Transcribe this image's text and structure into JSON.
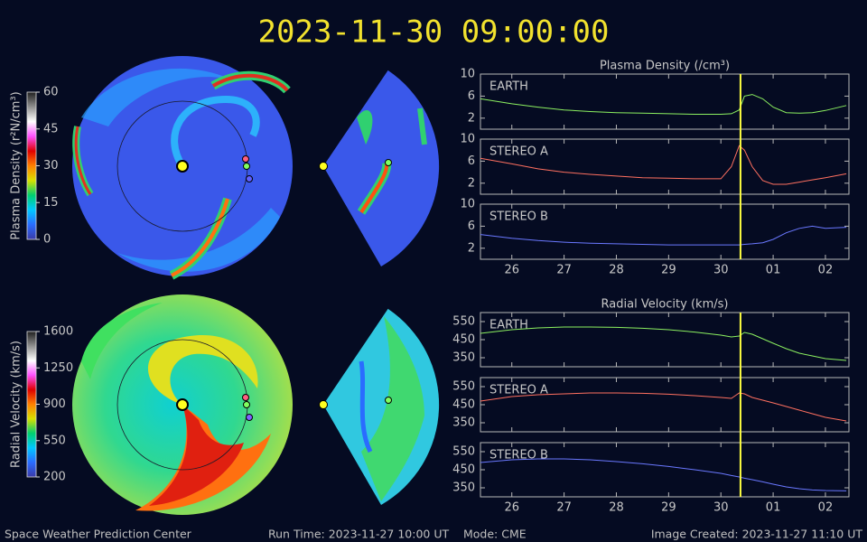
{
  "title": "2023-11-30 09:00:00",
  "footer": {
    "left": "Space Weather Prediction Center",
    "run": "Run Time: 2023-11-27 10:00 UT",
    "mode": "Mode: CME",
    "created": "Image Created: 2023-11-27 11:10 UT"
  },
  "chart_data": [
    {
      "type": "colorbar",
      "label": "Plasma Density (r²N/cm³)",
      "ylim": [
        0,
        60
      ],
      "yticks": [
        0,
        15,
        30,
        45,
        60
      ],
      "colormap": [
        "#3a3aa8",
        "#2a6cff",
        "#00c8ff",
        "#00d070",
        "#d8e000",
        "#ff8000",
        "#e00000",
        "#ff50ff",
        "#ffffff",
        "#909090",
        "#202020"
      ]
    },
    {
      "type": "colorbar",
      "label": "Radial Velocity (km/s)",
      "ylim": [
        200,
        1600
      ],
      "yticks": [
        200,
        550,
        900,
        1250,
        1600
      ],
      "colormap": [
        "#3a3aa8",
        "#2a6cff",
        "#00c8ff",
        "#00d070",
        "#d8e000",
        "#ff8000",
        "#e00000",
        "#ff50ff",
        "#ffffff",
        "#909090",
        "#202020"
      ]
    },
    {
      "type": "line",
      "title": "Plasma Density (/cm³)",
      "x": [
        25.4,
        26,
        26.5,
        27,
        27.5,
        28,
        28.5,
        29,
        29.5,
        30,
        30.2,
        30.35,
        30.45,
        30.6,
        30.8,
        31,
        31.25,
        31.5,
        31.75,
        32,
        32.4
      ],
      "xlim": [
        25.4,
        32.45
      ],
      "xticks": [
        26,
        27,
        28,
        29,
        30,
        {
          "value": 31,
          "label": "01"
        },
        {
          "value": 32,
          "label": "02"
        }
      ],
      "ylim": [
        0,
        10
      ],
      "yticks": [
        2,
        6,
        10
      ],
      "time_marker": 30.375,
      "series": [
        {
          "name": "EARTH",
          "color": "#8cf060",
          "values": [
            5.5,
            4.6,
            4.0,
            3.5,
            3.2,
            3.0,
            2.9,
            2.8,
            2.7,
            2.7,
            2.8,
            3.5,
            6.0,
            6.3,
            5.5,
            4.0,
            3.0,
            2.9,
            3.0,
            3.4,
            4.3
          ]
        },
        {
          "name": "STEREO A",
          "color": "#ff7060",
          "values": [
            6.5,
            5.5,
            4.6,
            4.0,
            3.6,
            3.3,
            3.0,
            2.9,
            2.8,
            2.8,
            5.0,
            8.8,
            8.0,
            5.0,
            2.5,
            1.8,
            1.8,
            2.2,
            2.6,
            3.0,
            3.7
          ]
        },
        {
          "name": "STEREO B",
          "color": "#6a78ff",
          "values": [
            4.5,
            3.8,
            3.4,
            3.1,
            2.9,
            2.8,
            2.7,
            2.6,
            2.6,
            2.6,
            2.6,
            2.6,
            2.7,
            2.8,
            3.0,
            3.6,
            4.8,
            5.6,
            6.0,
            5.6,
            5.8
          ]
        }
      ]
    },
    {
      "type": "line",
      "title": "Radial Velocity (km/s)",
      "x": [
        25.4,
        26,
        26.5,
        27,
        27.5,
        28,
        28.5,
        29,
        29.5,
        30,
        30.2,
        30.35,
        30.45,
        30.6,
        30.8,
        31,
        31.25,
        31.5,
        31.75,
        32,
        32.4
      ],
      "xlim": [
        25.4,
        32.45
      ],
      "xticks": [
        26,
        27,
        28,
        29,
        30,
        {
          "value": 31,
          "label": "01"
        },
        {
          "value": 32,
          "label": "02"
        }
      ],
      "ylim": [
        300,
        600
      ],
      "yticks": [
        350,
        450,
        550
      ],
      "time_marker": 30.375,
      "series": [
        {
          "name": "EARTH",
          "color": "#8cf060",
          "values": [
            485,
            505,
            515,
            520,
            520,
            518,
            513,
            505,
            492,
            475,
            465,
            470,
            490,
            480,
            455,
            430,
            400,
            375,
            360,
            345,
            335
          ]
        },
        {
          "name": "STEREO A",
          "color": "#ff7060",
          "values": [
            470,
            495,
            505,
            510,
            515,
            515,
            513,
            508,
            500,
            490,
            485,
            515,
            510,
            490,
            475,
            460,
            440,
            420,
            400,
            380,
            360
          ]
        },
        {
          "name": "STEREO B",
          "color": "#6a78ff",
          "values": [
            490,
            505,
            510,
            510,
            505,
            495,
            483,
            468,
            450,
            430,
            418,
            410,
            403,
            395,
            383,
            370,
            355,
            345,
            338,
            335,
            333
          ]
        }
      ]
    }
  ]
}
